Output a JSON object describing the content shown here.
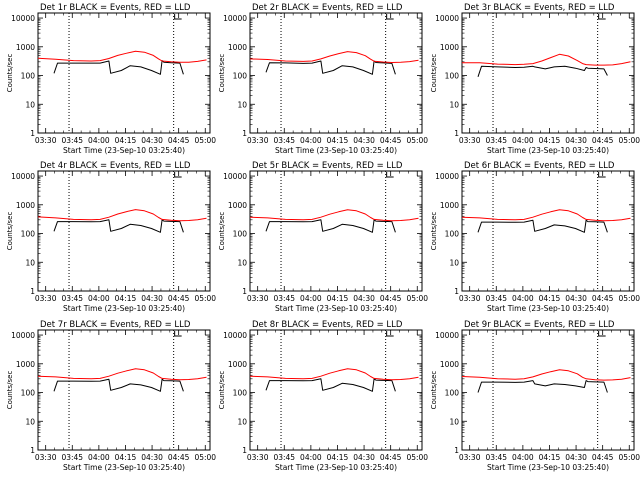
{
  "figure": {
    "y_axis_label": "Counts/sec",
    "x_axis_label": "Start Time (23-Sep-10 03:25:40)"
  },
  "shared": {
    "type": "line",
    "x_unit": "minutes after 03:25:40",
    "x_tick_labels": [
      "03:30",
      "03:45",
      "04:00",
      "04:15",
      "04:30",
      "04:45",
      "05:00"
    ],
    "x_tick_values": [
      4.33,
      19.33,
      34.33,
      49.33,
      64.33,
      79.33,
      94.33
    ],
    "xlim": [
      0,
      97
    ],
    "yscale": "log",
    "ylim": [
      1,
      15000
    ],
    "y_tick_labels": [
      "1",
      "10",
      "100",
      "1000",
      "10000"
    ],
    "y_tick_values": [
      1,
      10,
      100,
      1000,
      10000
    ],
    "vertical_dotted_lines": [
      17.5,
      76.5
    ],
    "colors": {
      "events": "#000000",
      "lld": "#ff0000"
    }
  },
  "chart_data": [
    {
      "type": "line",
      "title": "Det 1r BLACK = Events, RED = LLD",
      "series": [
        {
          "name": "Events",
          "color": "#000000",
          "x": [
            9,
            11,
            20,
            30,
            35,
            40,
            41,
            47,
            52,
            58,
            64,
            69,
            70,
            71,
            75,
            80,
            82
          ],
          "y": [
            120,
            270,
            270,
            270,
            270,
            320,
            120,
            150,
            220,
            200,
            150,
            110,
            330,
            290,
            280,
            270,
            110
          ]
        },
        {
          "name": "LLD",
          "color": "#ff0000",
          "x": [
            0,
            10,
            20,
            30,
            35,
            40,
            45,
            50,
            55,
            60,
            65,
            68,
            70,
            75,
            80,
            85,
            90,
            95
          ],
          "y": [
            400,
            370,
            330,
            320,
            330,
            390,
            500,
            600,
            700,
            650,
            500,
            380,
            320,
            300,
            290,
            290,
            310,
            350
          ]
        }
      ]
    },
    {
      "type": "line",
      "title": "Det 2r BLACK = Events, RED = LLD",
      "series": [
        {
          "name": "Events",
          "color": "#000000",
          "x": [
            9,
            11,
            20,
            30,
            35,
            40,
            41,
            47,
            52,
            58,
            64,
            69,
            70,
            71,
            75,
            80,
            82
          ],
          "y": [
            130,
            280,
            275,
            265,
            270,
            320,
            120,
            150,
            220,
            200,
            150,
            110,
            320,
            285,
            275,
            265,
            110
          ]
        },
        {
          "name": "LLD",
          "color": "#ff0000",
          "x": [
            0,
            10,
            20,
            30,
            35,
            40,
            45,
            50,
            55,
            60,
            65,
            68,
            70,
            75,
            80,
            85,
            90,
            95
          ],
          "y": [
            380,
            360,
            320,
            310,
            320,
            380,
            480,
            580,
            680,
            630,
            490,
            370,
            315,
            295,
            285,
            290,
            305,
            340
          ]
        }
      ]
    },
    {
      "type": "line",
      "title": "Det 3r BLACK = Events, RED = LLD",
      "series": [
        {
          "name": "Events",
          "color": "#000000",
          "x": [
            9,
            11,
            20,
            30,
            35,
            40,
            41,
            47,
            52,
            58,
            64,
            69,
            70,
            71,
            75,
            80,
            82
          ],
          "y": [
            90,
            210,
            200,
            190,
            195,
            210,
            200,
            170,
            200,
            210,
            180,
            150,
            190,
            180,
            175,
            170,
            100
          ]
        },
        {
          "name": "LLD",
          "color": "#ff0000",
          "x": [
            0,
            10,
            20,
            30,
            35,
            40,
            45,
            50,
            55,
            60,
            65,
            68,
            70,
            75,
            80,
            85,
            90,
            95
          ],
          "y": [
            280,
            280,
            250,
            240,
            245,
            260,
            320,
            420,
            550,
            480,
            330,
            260,
            240,
            230,
            230,
            235,
            260,
            300
          ]
        }
      ]
    },
    {
      "type": "line",
      "title": "Det 4r BLACK = Events, RED = LLD",
      "series": [
        {
          "name": "Events",
          "color": "#000000",
          "x": [
            9,
            11,
            20,
            30,
            35,
            40,
            41,
            47,
            52,
            58,
            64,
            69,
            70,
            71,
            75,
            80,
            82
          ],
          "y": [
            120,
            260,
            260,
            255,
            260,
            300,
            120,
            150,
            210,
            190,
            150,
            110,
            300,
            270,
            265,
            260,
            110
          ]
        },
        {
          "name": "LLD",
          "color": "#ff0000",
          "x": [
            0,
            10,
            20,
            30,
            35,
            40,
            45,
            50,
            55,
            60,
            65,
            68,
            70,
            75,
            80,
            85,
            90,
            95
          ],
          "y": [
            380,
            350,
            310,
            300,
            310,
            370,
            480,
            580,
            680,
            620,
            480,
            360,
            310,
            290,
            280,
            285,
            300,
            340
          ]
        }
      ]
    },
    {
      "type": "line",
      "title": "Det 5r BLACK = Events, RED = LLD",
      "series": [
        {
          "name": "Events",
          "color": "#000000",
          "x": [
            9,
            11,
            20,
            30,
            35,
            40,
            41,
            47,
            52,
            58,
            64,
            69,
            70,
            71,
            75,
            80,
            82
          ],
          "y": [
            120,
            260,
            260,
            255,
            260,
            300,
            120,
            150,
            210,
            190,
            150,
            110,
            300,
            270,
            265,
            260,
            110
          ]
        },
        {
          "name": "LLD",
          "color": "#ff0000",
          "x": [
            0,
            10,
            20,
            30,
            35,
            40,
            45,
            50,
            55,
            60,
            65,
            68,
            70,
            75,
            80,
            85,
            90,
            95
          ],
          "y": [
            370,
            350,
            310,
            300,
            310,
            370,
            470,
            570,
            670,
            620,
            480,
            360,
            310,
            290,
            280,
            285,
            300,
            340
          ]
        }
      ]
    },
    {
      "type": "line",
      "title": "Det 6r BLACK = Events, RED = LLD",
      "series": [
        {
          "name": "Events",
          "color": "#000000",
          "x": [
            9,
            11,
            20,
            30,
            35,
            40,
            41,
            47,
            52,
            58,
            64,
            69,
            70,
            71,
            75,
            80,
            82
          ],
          "y": [
            110,
            250,
            250,
            245,
            250,
            290,
            120,
            150,
            200,
            185,
            150,
            110,
            290,
            260,
            255,
            250,
            110
          ]
        },
        {
          "name": "LLD",
          "color": "#ff0000",
          "x": [
            0,
            10,
            20,
            30,
            35,
            40,
            45,
            50,
            55,
            60,
            65,
            68,
            70,
            75,
            80,
            85,
            90,
            95
          ],
          "y": [
            370,
            350,
            310,
            300,
            310,
            370,
            470,
            570,
            670,
            620,
            480,
            360,
            310,
            290,
            280,
            285,
            300,
            340
          ]
        }
      ]
    },
    {
      "type": "line",
      "title": "Det 7r BLACK = Events, RED = LLD",
      "series": [
        {
          "name": "Events",
          "color": "#000000",
          "x": [
            9,
            11,
            20,
            30,
            35,
            40,
            41,
            47,
            52,
            58,
            64,
            69,
            70,
            71,
            75,
            80,
            82
          ],
          "y": [
            110,
            250,
            250,
            245,
            250,
            290,
            120,
            150,
            200,
            185,
            150,
            110,
            290,
            260,
            255,
            250,
            110
          ]
        },
        {
          "name": "LLD",
          "color": "#ff0000",
          "x": [
            0,
            10,
            20,
            30,
            35,
            40,
            45,
            50,
            55,
            60,
            65,
            68,
            70,
            75,
            80,
            85,
            90,
            95
          ],
          "y": [
            370,
            350,
            310,
            300,
            310,
            370,
            470,
            570,
            670,
            620,
            480,
            360,
            310,
            290,
            280,
            285,
            300,
            340
          ]
        }
      ]
    },
    {
      "type": "line",
      "title": "Det 8r BLACK = Events, RED = LLD",
      "series": [
        {
          "name": "Events",
          "color": "#000000",
          "x": [
            9,
            11,
            20,
            30,
            35,
            40,
            41,
            47,
            52,
            58,
            64,
            69,
            70,
            71,
            75,
            80,
            82
          ],
          "y": [
            120,
            260,
            260,
            255,
            260,
            300,
            120,
            150,
            210,
            190,
            150,
            110,
            300,
            270,
            265,
            260,
            110
          ]
        },
        {
          "name": "LLD",
          "color": "#ff0000",
          "x": [
            0,
            10,
            20,
            30,
            35,
            40,
            45,
            50,
            55,
            60,
            65,
            68,
            70,
            75,
            80,
            85,
            90,
            95
          ],
          "y": [
            370,
            350,
            310,
            300,
            310,
            370,
            470,
            570,
            670,
            620,
            480,
            360,
            310,
            290,
            280,
            285,
            300,
            340
          ]
        }
      ]
    },
    {
      "type": "line",
      "title": "Det 9r BLACK = Events, RED = LLD",
      "series": [
        {
          "name": "Events",
          "color": "#000000",
          "x": [
            9,
            11,
            20,
            30,
            35,
            40,
            41,
            47,
            52,
            58,
            64,
            69,
            70,
            71,
            75,
            80,
            82
          ],
          "y": [
            100,
            230,
            230,
            225,
            230,
            260,
            200,
            170,
            200,
            190,
            170,
            150,
            260,
            240,
            235,
            230,
            100
          ]
        },
        {
          "name": "LLD",
          "color": "#ff0000",
          "x": [
            0,
            10,
            20,
            30,
            35,
            40,
            45,
            50,
            55,
            60,
            65,
            68,
            70,
            75,
            80,
            85,
            90,
            95
          ],
          "y": [
            360,
            340,
            300,
            290,
            300,
            350,
            440,
            530,
            620,
            570,
            450,
            340,
            300,
            280,
            270,
            275,
            290,
            330
          ]
        }
      ]
    }
  ]
}
